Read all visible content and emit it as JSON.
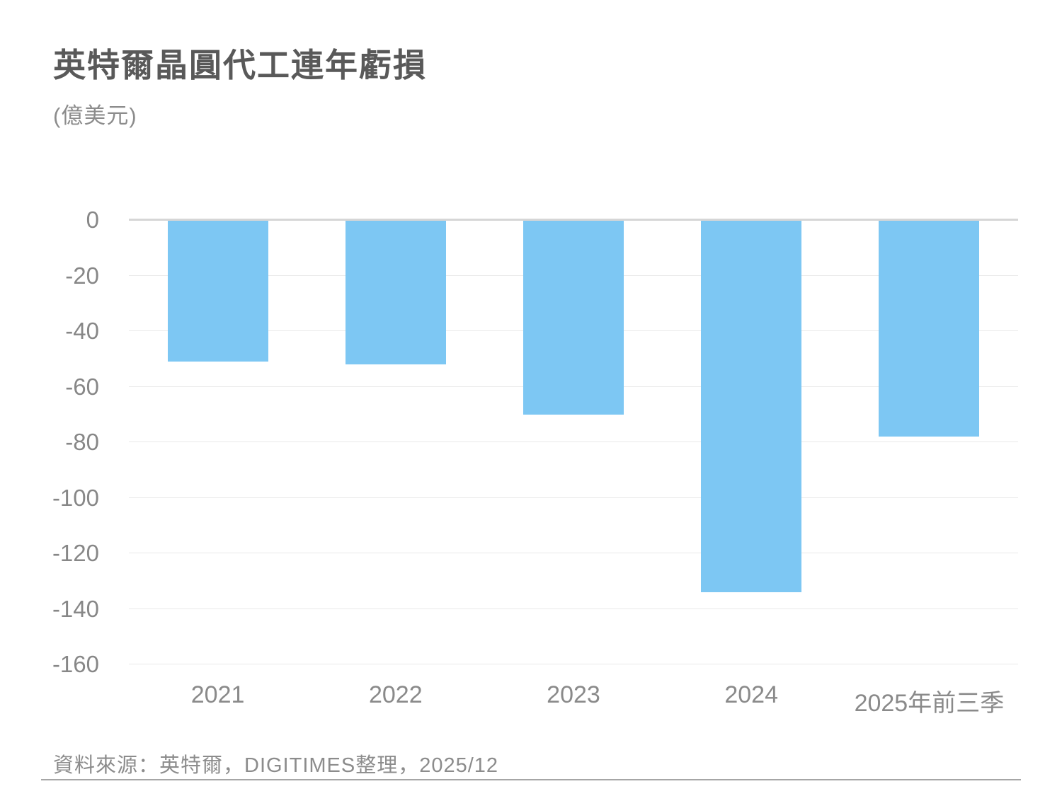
{
  "page": {
    "title": "英特爾晶圓代工連年虧損",
    "unit_label": "(億美元)",
    "source": "資料來源：英特爾，DIGITIMES整理，2025/12"
  },
  "chart_data": {
    "type": "bar",
    "title": "英特爾晶圓代工連年虧損",
    "subtitle": "(億美元)",
    "categories": [
      "2021",
      "2022",
      "2023",
      "2024",
      "2025年前三季"
    ],
    "values": [
      -51,
      -52,
      -70,
      -134,
      -78
    ],
    "xlabel": "",
    "ylabel": "億美元",
    "ylim": [
      -160,
      0
    ],
    "yticks": [
      0,
      -20,
      -40,
      -60,
      -80,
      -100,
      -120,
      -140,
      -160
    ],
    "grid": true,
    "legend_position": "none",
    "bar_color": "#7dc7f3",
    "zero_axis_color": "#d6d6d6",
    "gridline_color": "#e9e9e9",
    "source": "資料來源：英特爾，DIGITIMES整理，2025/12"
  }
}
